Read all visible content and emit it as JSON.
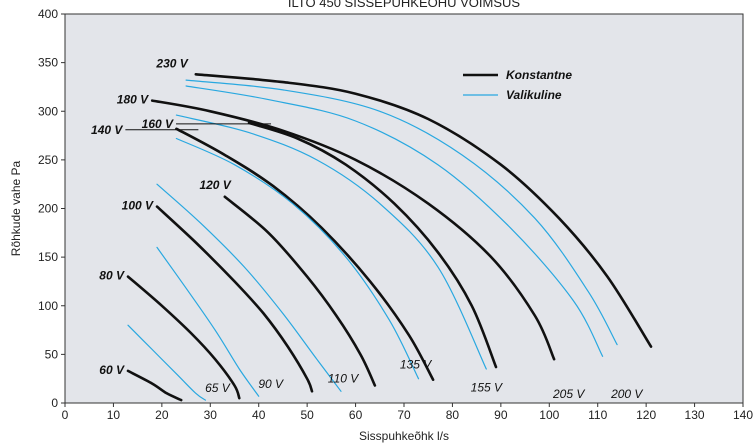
{
  "chart_data": {
    "type": "line",
    "title": "ILTO 450 SISSEPUHKEÕHU VÕIMSUS",
    "xlabel": "Sisspuhkeõhk l/s",
    "ylabel": "Rõhkude vahe Pa",
    "xlim": [
      0,
      140
    ],
    "ylim": [
      0,
      400
    ],
    "xticks": [
      0,
      10,
      20,
      30,
      40,
      50,
      60,
      70,
      80,
      90,
      100,
      110,
      120,
      130,
      140
    ],
    "yticks": [
      0,
      50,
      100,
      150,
      200,
      250,
      300,
      350,
      400
    ],
    "grid": false,
    "legend": {
      "position": "top-right",
      "entries": [
        {
          "name": "Konstantne",
          "color": "#111111"
        },
        {
          "name": "Valikuline",
          "color": "#29a8e0"
        }
      ]
    },
    "series": [
      {
        "name": "60 V",
        "kind": "Konstantne",
        "x": [
          13,
          18,
          21,
          24
        ],
        "y": [
          33,
          20,
          10,
          3
        ]
      },
      {
        "name": "80 V",
        "kind": "Konstantne",
        "x": [
          13,
          20,
          26,
          31,
          35,
          36
        ],
        "y": [
          130,
          100,
          72,
          45,
          18,
          5
        ]
      },
      {
        "name": "100 V",
        "kind": "Konstantne",
        "x": [
          19,
          27,
          35,
          41,
          46,
          50,
          51
        ],
        "y": [
          202,
          165,
          125,
          92,
          58,
          25,
          12
        ]
      },
      {
        "name": "120 V",
        "kind": "Konstantne",
        "x": [
          33,
          42,
          50,
          56,
          61,
          64
        ],
        "y": [
          212,
          175,
          130,
          90,
          50,
          18
        ]
      },
      {
        "name": "140 V",
        "kind": "Konstantne",
        "x": [
          23,
          33,
          43,
          53,
          63,
          71,
          76
        ],
        "y": [
          282,
          255,
          223,
          180,
          125,
          70,
          24
        ]
      },
      {
        "name": "160 V",
        "kind": "Konstantne",
        "x": [
          38,
          48,
          58,
          68,
          77,
          84,
          89
        ],
        "y": [
          288,
          272,
          245,
          205,
          155,
          100,
          37
        ]
      },
      {
        "name": "180 V",
        "kind": "Konstantne",
        "x": [
          18,
          30,
          45,
          60,
          75,
          88,
          97,
          101
        ],
        "y": [
          311,
          300,
          280,
          250,
          205,
          150,
          90,
          45
        ]
      },
      {
        "name": "230 V",
        "kind": "Konstantne",
        "x": [
          27,
          45,
          60,
          75,
          90,
          102,
          112,
          121
        ],
        "y": [
          338,
          330,
          318,
          292,
          245,
          190,
          130,
          58
        ]
      },
      {
        "name": "65 V",
        "kind": "Valikuline",
        "x": [
          13,
          18,
          23,
          27,
          29
        ],
        "y": [
          80,
          55,
          30,
          10,
          3
        ]
      },
      {
        "name": "90 V",
        "kind": "Valikuline",
        "x": [
          19,
          25,
          31,
          36,
          40
        ],
        "y": [
          160,
          118,
          75,
          35,
          7
        ]
      },
      {
        "name": "110 V",
        "kind": "Valikuline",
        "x": [
          19,
          28,
          37,
          45,
          52,
          57
        ],
        "y": [
          225,
          185,
          140,
          92,
          45,
          12
        ]
      },
      {
        "name": "135 V",
        "kind": "Valikuline",
        "x": [
          23,
          35,
          47,
          58,
          67,
          73
        ],
        "y": [
          272,
          245,
          205,
          150,
          85,
          25
        ]
      },
      {
        "name": "155 V",
        "kind": "Valikuline",
        "x": [
          23,
          38,
          52,
          65,
          77,
          87
        ],
        "y": [
          296,
          278,
          250,
          205,
          140,
          35
        ]
      },
      {
        "name": "205 V",
        "kind": "Valikuline",
        "x": [
          25,
          42,
          60,
          77,
          92,
          105,
          111
        ],
        "y": [
          326,
          312,
          290,
          245,
          180,
          105,
          48
        ]
      },
      {
        "name": "200 V",
        "kind": "Valikuline",
        "x": [
          25,
          45,
          65,
          82,
          97,
          108,
          114
        ],
        "y": [
          332,
          322,
          300,
          255,
          190,
          115,
          60
        ]
      }
    ]
  }
}
